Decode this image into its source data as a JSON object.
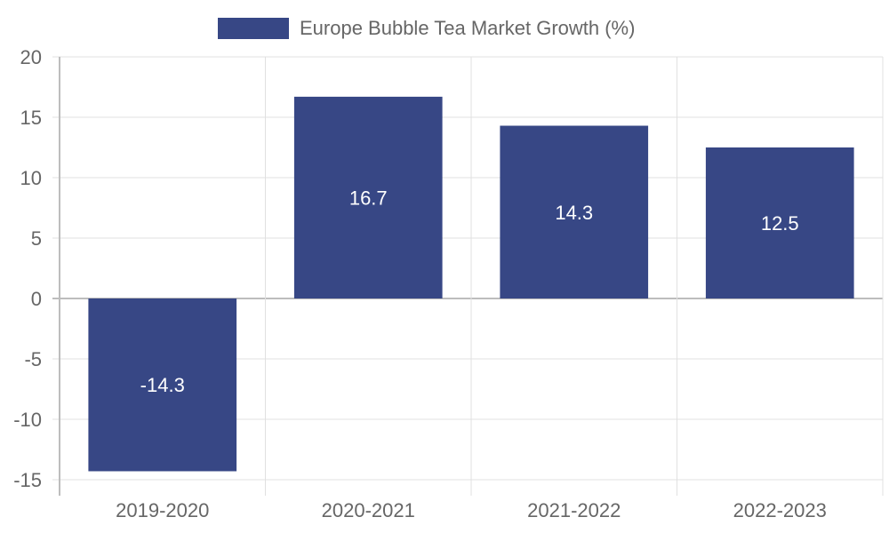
{
  "chart_data": {
    "type": "bar",
    "categories": [
      "2019-2020",
      "2020-2021",
      "2021-2022",
      "2022-2023"
    ],
    "series": [
      {
        "name": "Europe Bubble Tea Market Growth (%)",
        "values": [
          -14.3,
          16.7,
          14.3,
          12.5
        ],
        "color": "#374785"
      }
    ],
    "data_labels": [
      "-14.3",
      "16.7",
      "14.3",
      "12.5"
    ],
    "ylim": [
      -15,
      20
    ],
    "yticks": [
      20,
      15,
      10,
      5,
      0,
      -5,
      -10,
      -15
    ],
    "ytick_labels": [
      "20",
      "15",
      "10",
      "5",
      "0",
      "-5",
      "-10",
      "-15"
    ],
    "title": "",
    "xlabel": "",
    "ylabel": "",
    "grid": true,
    "legend_position": "top"
  },
  "colors": {
    "bar": "#374785",
    "grid": "#e0e0e0",
    "axis_text": "#666666",
    "label_text": "#ffffff"
  }
}
